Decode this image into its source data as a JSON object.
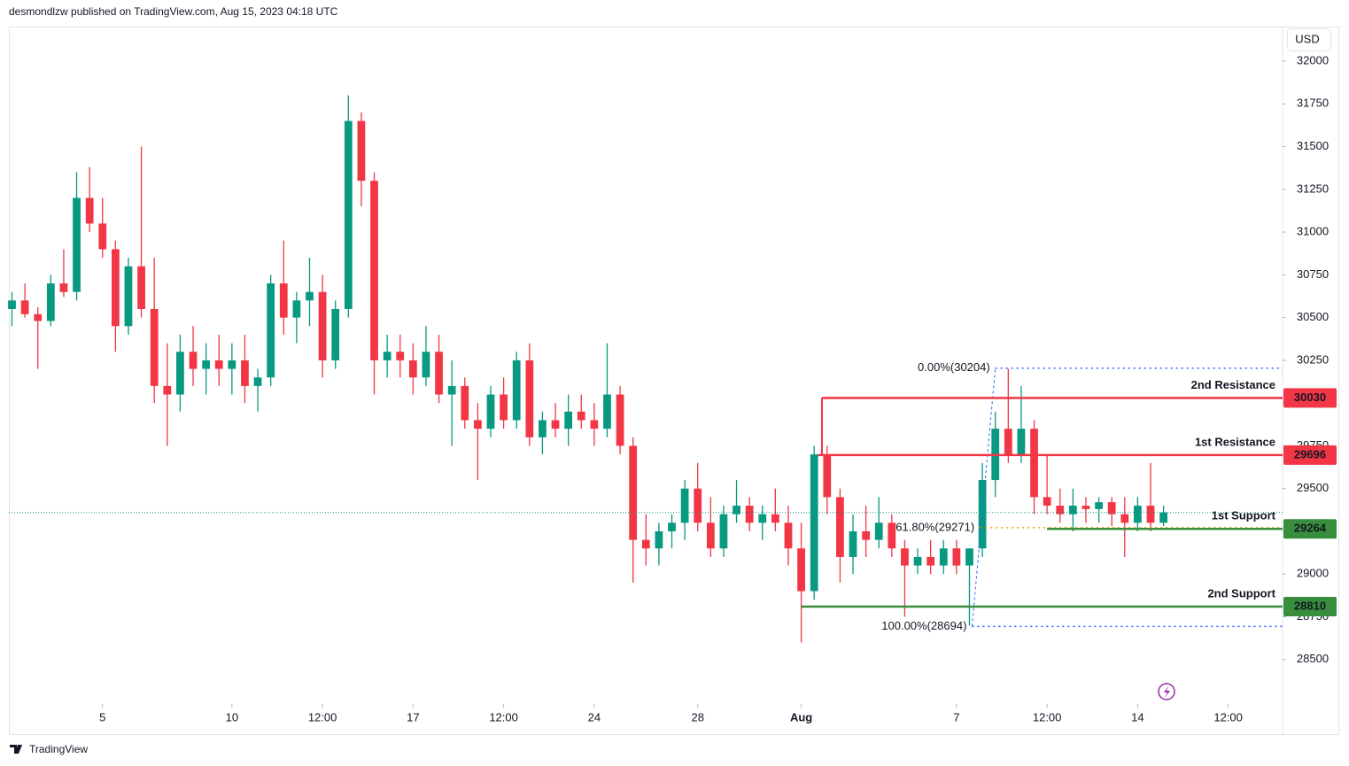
{
  "header": "desmondlzw published on TradingView.com, Aug 15, 2023 04:18 UTC",
  "currency": "USD",
  "brand": "TradingView",
  "chart_data": {
    "type": "candlestick",
    "up_color": "#089981",
    "down_color": "#f23645",
    "xlim": [
      0.38,
      49.6
    ],
    "ylim": [
      28240,
      32202
    ],
    "yticks": [
      28500,
      28750,
      29000,
      29250,
      29500,
      29750,
      30000,
      30250,
      30500,
      30750,
      31000,
      31250,
      31500,
      31750,
      32000
    ],
    "xticks": [
      {
        "value": 4,
        "label": "5"
      },
      {
        "value": 9,
        "label": "10"
      },
      {
        "value": 12.5,
        "label": "12:00"
      },
      {
        "value": 16,
        "label": "17"
      },
      {
        "value": 19.5,
        "label": "12:00"
      },
      {
        "value": 23,
        "label": "24"
      },
      {
        "value": 27,
        "label": "28"
      },
      {
        "value": 31,
        "label": "Aug"
      },
      {
        "value": 37,
        "label": "7"
      },
      {
        "value": 40.5,
        "label": "12:00"
      },
      {
        "value": 44,
        "label": "14"
      },
      {
        "value": 47.5,
        "label": "12:00"
      }
    ],
    "x": [
      0.5,
      1,
      1.5,
      2,
      2.5,
      3,
      3.5,
      4,
      4.5,
      5,
      5.5,
      6,
      6.5,
      7,
      7.5,
      8,
      8.5,
      9,
      9.5,
      10,
      10.5,
      11,
      11.5,
      12,
      12.5,
      13,
      13.5,
      14,
      14.5,
      15,
      15.5,
      16,
      16.5,
      17,
      17.5,
      18,
      18.5,
      19,
      19.5,
      20,
      20.5,
      21,
      21.5,
      22,
      22.5,
      23,
      23.5,
      24,
      24.5,
      25,
      25.5,
      26,
      26.5,
      27,
      27.5,
      28,
      28.5,
      29,
      29.5,
      30,
      30.5,
      31,
      31.5,
      32,
      32.5,
      33,
      33.5,
      34,
      34.5,
      35,
      35.5,
      36,
      36.5,
      37,
      37.5,
      38,
      38.5,
      39,
      39.5,
      40,
      40.5,
      41,
      41.5,
      42,
      42.5,
      43,
      43.5,
      44,
      44.5,
      45
    ],
    "candles": [
      [
        30550,
        30650,
        30450,
        30600
      ],
      [
        30600,
        30700,
        30500,
        30520
      ],
      [
        30520,
        30560,
        30200,
        30480
      ],
      [
        30480,
        30750,
        30450,
        30700
      ],
      [
        30700,
        30900,
        30620,
        30650
      ],
      [
        30650,
        31350,
        30600,
        31200
      ],
      [
        31200,
        31380,
        31000,
        31050
      ],
      [
        31050,
        31200,
        30850,
        30900
      ],
      [
        30900,
        30950,
        30300,
        30450
      ],
      [
        30450,
        30850,
        30400,
        30800
      ],
      [
        30800,
        31500,
        30500,
        30550
      ],
      [
        30550,
        30850,
        30000,
        30100
      ],
      [
        30100,
        30350,
        29750,
        30050
      ],
      [
        30050,
        30400,
        29950,
        30300
      ],
      [
        30300,
        30450,
        30100,
        30200
      ],
      [
        30200,
        30350,
        30050,
        30250
      ],
      [
        30250,
        30400,
        30100,
        30200
      ],
      [
        30200,
        30350,
        30050,
        30250
      ],
      [
        30250,
        30400,
        30000,
        30100
      ],
      [
        30100,
        30200,
        29950,
        30150
      ],
      [
        30150,
        30750,
        30100,
        30700
      ],
      [
        30700,
        30950,
        30400,
        30500
      ],
      [
        30500,
        30650,
        30350,
        30600
      ],
      [
        30600,
        30850,
        30450,
        30650
      ],
      [
        30650,
        30750,
        30150,
        30250
      ],
      [
        30250,
        30600,
        30200,
        30550
      ],
      [
        30550,
        31800,
        30500,
        31650
      ],
      [
        31650,
        31700,
        31150,
        31300
      ],
      [
        31300,
        31350,
        30050,
        30250
      ],
      [
        30250,
        30400,
        30150,
        30300
      ],
      [
        30300,
        30400,
        30150,
        30250
      ],
      [
        30250,
        30350,
        30050,
        30150
      ],
      [
        30150,
        30450,
        30100,
        30300
      ],
      [
        30300,
        30400,
        30000,
        30050
      ],
      [
        30050,
        30250,
        29750,
        30100
      ],
      [
        30100,
        30150,
        29850,
        29900
      ],
      [
        29900,
        30000,
        29550,
        29850
      ],
      [
        29850,
        30100,
        29800,
        30050
      ],
      [
        30050,
        30150,
        29850,
        29900
      ],
      [
        29900,
        30300,
        29850,
        30250
      ],
      [
        30250,
        30350,
        29750,
        29800
      ],
      [
        29800,
        29950,
        29700,
        29900
      ],
      [
        29900,
        30000,
        29800,
        29850
      ],
      [
        29850,
        30050,
        29750,
        29950
      ],
      [
        29950,
        30050,
        29850,
        29900
      ],
      [
        29900,
        30000,
        29750,
        29850
      ],
      [
        29850,
        30350,
        29800,
        30050
      ],
      [
        30050,
        30100,
        29700,
        29750
      ],
      [
        29750,
        29800,
        28950,
        29200
      ],
      [
        29200,
        29350,
        29050,
        29150
      ],
      [
        29150,
        29300,
        29050,
        29250
      ],
      [
        29250,
        29350,
        29150,
        29300
      ],
      [
        29300,
        29550,
        29200,
        29500
      ],
      [
        29500,
        29650,
        29250,
        29300
      ],
      [
        29300,
        29450,
        29100,
        29150
      ],
      [
        29150,
        29400,
        29100,
        29350
      ],
      [
        29350,
        29550,
        29300,
        29400
      ],
      [
        29400,
        29450,
        29250,
        29300
      ],
      [
        29300,
        29400,
        29200,
        29350
      ],
      [
        29350,
        29500,
        29250,
        29300
      ],
      [
        29300,
        29400,
        29050,
        29150
      ],
      [
        29150,
        29300,
        28600,
        28900
      ],
      [
        28900,
        29750,
        28850,
        29700
      ],
      [
        29700,
        29750,
        29350,
        29450
      ],
      [
        29450,
        29500,
        28950,
        29100
      ],
      [
        29100,
        29350,
        29000,
        29250
      ],
      [
        29250,
        29400,
        29100,
        29200
      ],
      [
        29200,
        29450,
        29150,
        29300
      ],
      [
        29300,
        29350,
        29100,
        29150
      ],
      [
        29150,
        29200,
        28750,
        29050
      ],
      [
        29050,
        29150,
        29000,
        29100
      ],
      [
        29100,
        29200,
        29000,
        29050
      ],
      [
        29050,
        29200,
        29000,
        29150
      ],
      [
        29150,
        29200,
        29000,
        29050
      ],
      [
        29050,
        29150,
        28700,
        29150
      ],
      [
        29150,
        29650,
        29100,
        29550
      ],
      [
        29550,
        29950,
        29450,
        29850
      ],
      [
        29850,
        30200,
        29650,
        29700
      ],
      [
        29700,
        30100,
        29650,
        29850
      ],
      [
        29850,
        29900,
        29350,
        29450
      ],
      [
        29450,
        29700,
        29350,
        29400
      ],
      [
        29400,
        29500,
        29300,
        29350
      ],
      [
        29350,
        29500,
        29250,
        29400
      ],
      [
        29400,
        29450,
        29300,
        29380
      ],
      [
        29380,
        29450,
        29300,
        29420
      ],
      [
        29420,
        29450,
        29280,
        29350
      ],
      [
        29350,
        29450,
        29100,
        29300
      ],
      [
        29300,
        29450,
        29250,
        29400
      ],
      [
        29400,
        29650,
        29250,
        29300
      ],
      [
        29300,
        29400,
        29280,
        29360
      ]
    ],
    "levels": [
      {
        "name": "2nd Resistance",
        "value": 30030,
        "color": "#f23645",
        "x_start": 31.8
      },
      {
        "name": "1st Resistance",
        "value": 29696,
        "color": "#f23645",
        "x_start": 31.65
      },
      {
        "name": "1st Support",
        "value": 29264,
        "color": "#388e3c",
        "x_start": 40.5
      },
      {
        "name": "2nd Support",
        "value": 28810,
        "color": "#388e3c",
        "x_start": 31
      }
    ],
    "fib": [
      {
        "label": "0.00%(30204)",
        "value": 30204,
        "color": "#2962ff",
        "x_start": 38.5
      },
      {
        "label": "61.80%(29271)",
        "value": 29271,
        "color": "#e0a100",
        "x_start": 37.9
      },
      {
        "label": "100.00%(28694)",
        "value": 28694,
        "color": "#2962ff",
        "x_start": 37.6
      }
    ]
  }
}
